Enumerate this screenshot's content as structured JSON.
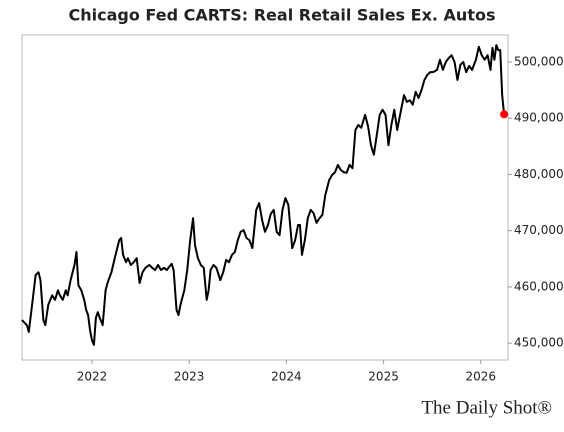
{
  "chart_data": {
    "type": "line",
    "title": "Chicago Fed CARTS: Real Retail Sales Ex. Autos",
    "watermark": "The Daily Shot®",
    "x": [
      2021.28,
      2021.33,
      2021.35,
      2021.39,
      2021.42,
      2021.45,
      2021.47,
      2021.5,
      2021.52,
      2021.55,
      2021.59,
      2021.62,
      2021.65,
      2021.67,
      2021.7,
      2021.73,
      2021.75,
      2021.78,
      2021.82,
      2021.84,
      2021.86,
      2021.89,
      2021.92,
      2021.94,
      2021.96,
      2021.98,
      2022.0,
      2022.02,
      2022.04,
      2022.06,
      2022.08,
      2022.11,
      2022.14,
      2022.16,
      2022.2,
      2022.23,
      2022.26,
      2022.28,
      2022.3,
      2022.32,
      2022.35,
      2022.37,
      2022.4,
      2022.43,
      2022.46,
      2022.49,
      2022.52,
      2022.55,
      2022.59,
      2022.62,
      2022.65,
      2022.68,
      2022.71,
      2022.74,
      2022.77,
      2022.8,
      2022.82,
      2022.84,
      2022.87,
      2022.89,
      2022.91,
      2022.95,
      2022.98,
      2023.01,
      2023.04,
      2023.06,
      2023.09,
      2023.12,
      2023.15,
      2023.18,
      2023.2,
      2023.22,
      2023.25,
      2023.28,
      2023.32,
      2023.35,
      2023.38,
      2023.41,
      2023.44,
      2023.47,
      2023.5,
      2023.53,
      2023.56,
      2023.59,
      2023.62,
      2023.65,
      2023.69,
      2023.72,
      2023.75,
      2023.78,
      2023.81,
      2023.84,
      2023.87,
      2023.9,
      2023.93,
      2023.96,
      2023.99,
      2024.02,
      2024.06,
      2024.09,
      2024.12,
      2024.14,
      2024.16,
      2024.19,
      2024.22,
      2024.25,
      2024.28,
      2024.31,
      2024.34,
      2024.37,
      2024.4,
      2024.44,
      2024.47,
      2024.5,
      2024.53,
      2024.56,
      2024.59,
      2024.62,
      2024.65,
      2024.68,
      2024.71,
      2024.74,
      2024.77,
      2024.81,
      2024.84,
      2024.87,
      2024.9,
      2024.93,
      2024.96,
      2024.99,
      2025.02,
      2025.05,
      2025.08,
      2025.11,
      2025.14,
      2025.18,
      2025.21,
      2025.24,
      2025.27,
      2025.3,
      2025.33,
      2025.36,
      2025.39,
      2025.42,
      2025.45,
      2025.48,
      2025.51,
      2025.55,
      2025.58,
      2025.61,
      2025.64,
      2025.67,
      2025.7,
      2025.73,
      2025.76,
      2025.79,
      2025.82,
      2025.85,
      2025.88,
      2025.91,
      2025.95,
      2025.98,
      2026.01,
      2026.04,
      2026.07,
      2026.1,
      2026.12,
      2026.14,
      2026.16,
      2026.18,
      2026.2,
      2026.22,
      2026.24
    ],
    "values": [
      454100,
      453200,
      452000,
      457700,
      462100,
      462600,
      461200,
      454100,
      453200,
      456800,
      458500,
      457700,
      459400,
      458500,
      457700,
      459400,
      458500,
      461200,
      463900,
      466200,
      460300,
      459400,
      457700,
      455900,
      455000,
      452300,
      450500,
      449700,
      454500,
      455500,
      454500,
      453200,
      459400,
      460700,
      462600,
      464800,
      466900,
      468300,
      468700,
      465700,
      464400,
      465100,
      463900,
      464400,
      465100,
      460700,
      462600,
      463400,
      463900,
      463400,
      463000,
      463900,
      463000,
      463400,
      463000,
      463700,
      464100,
      463000,
      455900,
      455000,
      456800,
      459400,
      463000,
      468300,
      472200,
      467400,
      465100,
      463900,
      463400,
      457700,
      459400,
      463000,
      463900,
      463400,
      461200,
      462600,
      464800,
      464400,
      465700,
      466200,
      468300,
      469800,
      470100,
      468700,
      468300,
      466900,
      473700,
      474900,
      471900,
      469800,
      471000,
      473000,
      473700,
      469800,
      469200,
      473700,
      475800,
      474600,
      466900,
      468300,
      471000,
      471000,
      465700,
      468300,
      472200,
      473700,
      473100,
      471400,
      472200,
      472800,
      476300,
      479000,
      479900,
      480400,
      481700,
      480800,
      480400,
      480300,
      481700,
      481100,
      487900,
      488800,
      488300,
      490600,
      488600,
      485200,
      483500,
      487000,
      490600,
      491500,
      490600,
      485200,
      488800,
      491500,
      487900,
      491500,
      494100,
      492900,
      493200,
      492400,
      494700,
      493600,
      495000,
      496800,
      497700,
      498200,
      498200,
      498600,
      500400,
      498600,
      500000,
      500700,
      501200,
      500000,
      496800,
      499500,
      500000,
      498200,
      499300,
      498600,
      500400,
      502700,
      501200,
      500400,
      501200,
      498600,
      502500,
      500400,
      503000,
      502100,
      502100,
      494100,
      490700
    ],
    "color": "#000000",
    "last_point_color": "#ff0000",
    "xlim": [
      2021.28,
      2026.28
    ],
    "xticks": [
      2022,
      2023,
      2024,
      2025,
      2026
    ],
    "ylim": [
      447000,
      504800
    ],
    "yticks": [
      {
        "value": 450000,
        "label": "450,000"
      },
      {
        "value": 460000,
        "label": "460,000"
      },
      {
        "value": 470000,
        "label": "470,000"
      },
      {
        "value": 480000,
        "label": "480,000"
      },
      {
        "value": 490000,
        "label": "490,000"
      },
      {
        "value": 500000,
        "label": "500,000"
      }
    ],
    "y_axis_side": "right",
    "grid": false
  }
}
